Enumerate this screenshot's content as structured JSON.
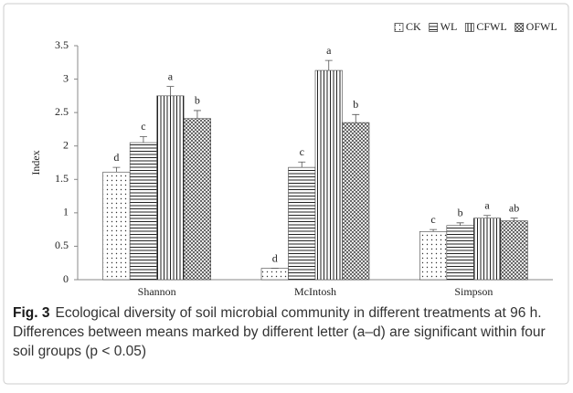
{
  "chart_data": {
    "type": "bar",
    "y_label": "Index",
    "categories": [
      "Shannon",
      "McIntosh",
      "Simpson"
    ],
    "series": [
      {
        "name": "CK",
        "pattern": "dots",
        "values": [
          1.61,
          0.17,
          0.72
        ],
        "errors": [
          0.07,
          0,
          0.03
        ],
        "letters": [
          "d",
          "d",
          "c"
        ]
      },
      {
        "name": "WL",
        "pattern": "hlines",
        "values": [
          2.05,
          1.68,
          0.81
        ],
        "errors": [
          0.09,
          0.08,
          0.04
        ],
        "letters": [
          "c",
          "c",
          "b"
        ]
      },
      {
        "name": "CFWL",
        "pattern": "vlines",
        "values": [
          2.75,
          3.13,
          0.92
        ],
        "errors": [
          0.14,
          0.15,
          0.04
        ],
        "letters": [
          "a",
          "a",
          "a"
        ]
      },
      {
        "name": "OFWL",
        "pattern": "crosshatch",
        "values": [
          2.41,
          2.35,
          0.88
        ],
        "errors": [
          0.12,
          0.12,
          0.04
        ],
        "letters": [
          "b",
          "b",
          "ab"
        ]
      }
    ],
    "ylim": [
      0,
      3.5
    ],
    "yticks": [
      0,
      0.5,
      1,
      1.5,
      2,
      2.5,
      3,
      3.5
    ],
    "grid": false,
    "legend": "top-right",
    "caption": {
      "label": "Fig. 3",
      "text": "Ecological diversity of soil microbial community in different treatments at 96 h. Differences between means marked by different letter (a–d) are significant within four soil groups (p < 0.05)"
    }
  }
}
